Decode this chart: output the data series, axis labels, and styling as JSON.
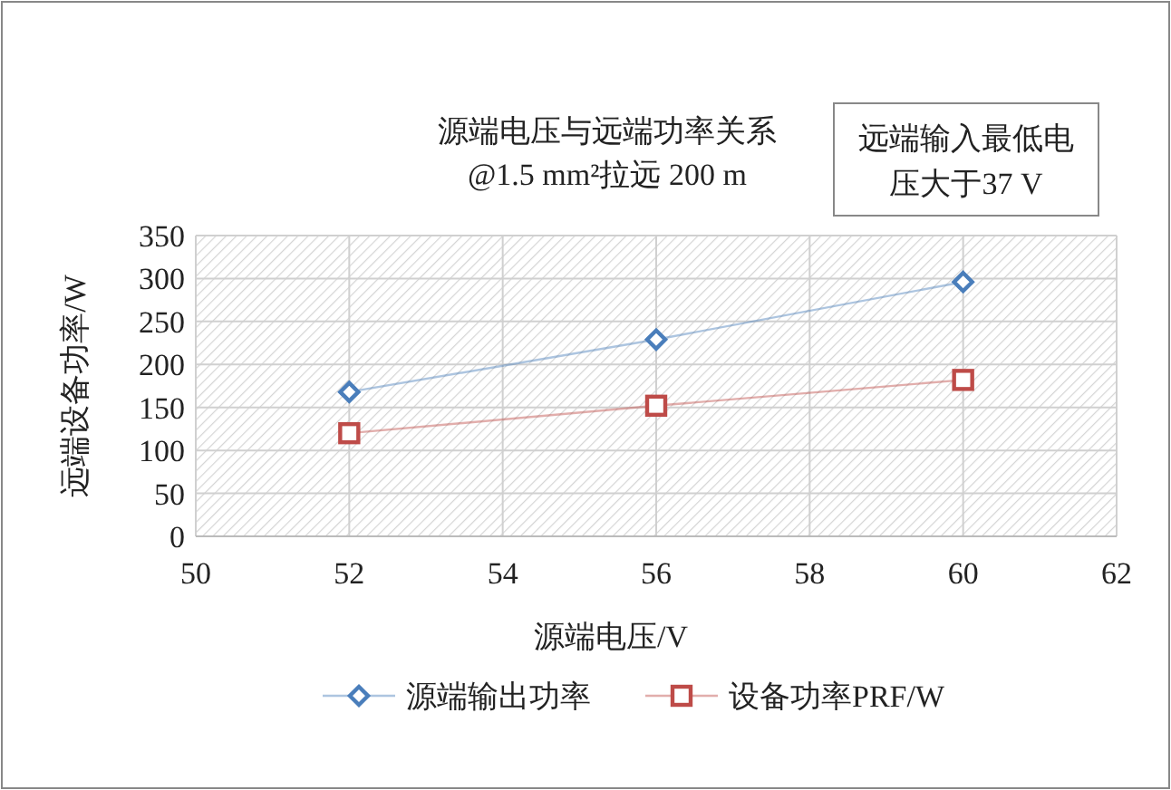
{
  "chart_data": {
    "type": "line",
    "title": "源端电压与远端功率关系",
    "subtitle": "@1.5 mm²拉远 200 m",
    "xlabel": "源端电压/V",
    "ylabel": "远端设备功率/W",
    "annotations": [
      "远端输入最低电压大于37 V"
    ],
    "x": [
      52,
      56,
      60
    ],
    "series": [
      {
        "name": "源端输出功率",
        "color": "#4a7ebb",
        "marker": "diamond",
        "values": [
          168,
          229,
          296
        ]
      },
      {
        "name": "设备功率PRF/W",
        "color": "#be4b48",
        "marker": "square",
        "values": [
          120,
          152,
          182
        ]
      }
    ],
    "xlim": [
      50,
      62
    ],
    "xticks": [
      50,
      52,
      54,
      56,
      58,
      60,
      62
    ],
    "ylim": [
      0,
      350
    ],
    "yticks": [
      0,
      50,
      100,
      150,
      200,
      250,
      300,
      350
    ],
    "grid": true,
    "legend": "bottom"
  }
}
